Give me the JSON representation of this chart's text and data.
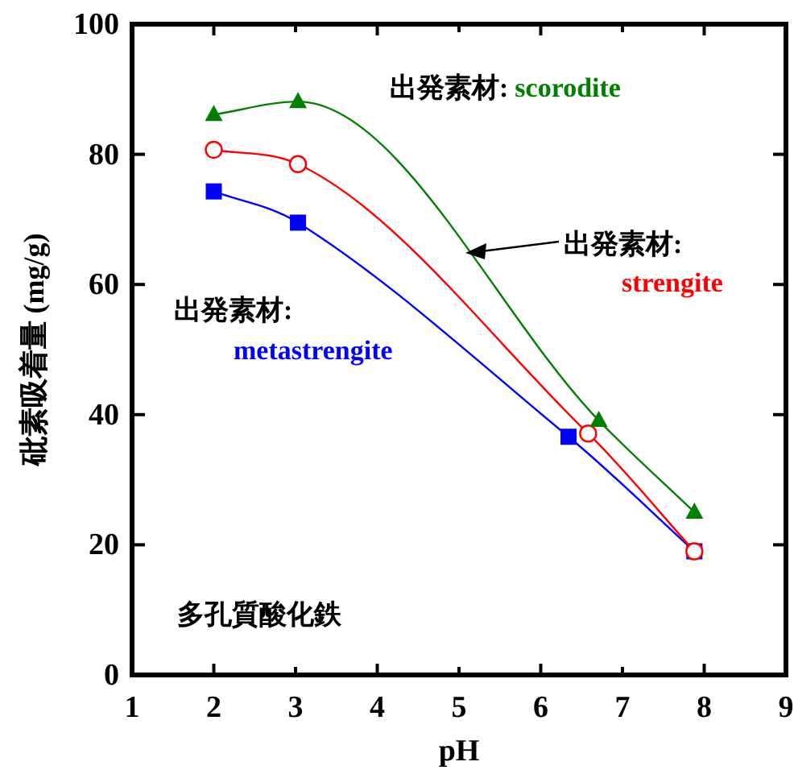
{
  "chart_data": {
    "type": "line",
    "xlabel": "pH",
    "ylabel": "砒素吸着量 (mg/g)",
    "xlim": [
      1,
      9
    ],
    "xticks": [
      1,
      2,
      3,
      4,
      5,
      6,
      7,
      8,
      9
    ],
    "ylim": [
      0,
      100
    ],
    "yticks": [
      0,
      20,
      40,
      60,
      80,
      100
    ],
    "grid": false,
    "legend": false,
    "series": [
      {
        "name": "scorodite",
        "color": "#008000",
        "marker": "triangle",
        "x": [
          2.0,
          3.03,
          6.71,
          7.88
        ],
        "values": [
          86.1,
          88.1,
          39.1,
          25.0
        ]
      },
      {
        "name": "strengite",
        "color": "#ff0000",
        "marker": "circle",
        "x": [
          2.0,
          3.03,
          6.58,
          7.88
        ],
        "values": [
          80.7,
          78.5,
          37.1,
          19.0
        ]
      },
      {
        "name": "metastrengite",
        "color": "#0000ff",
        "marker": "square",
        "x": [
          2.0,
          3.03,
          6.34,
          7.88
        ],
        "values": [
          74.3,
          69.5,
          36.6,
          19.0
        ]
      }
    ],
    "annotations": [
      "出発素材:",
      "出発素材:",
      "出発素材:",
      "多孔質酸化鉄"
    ]
  }
}
